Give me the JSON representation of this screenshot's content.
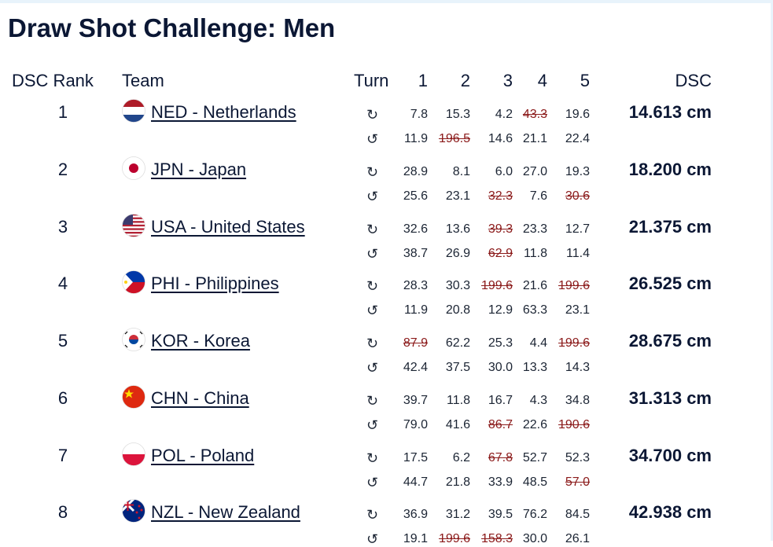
{
  "title": "Draw Shot Challenge: Men",
  "header": {
    "rank": "DSC Rank",
    "team": "Team",
    "turn": "Turn",
    "shots": [
      "1",
      "2",
      "3",
      "4",
      "5"
    ],
    "dsc": "DSC"
  },
  "rows": [
    {
      "rank": "1",
      "team": "NED - Netherlands",
      "dsc": "14.613 cm",
      "turns": [
        {
          "symbol": "↻",
          "shots": [
            {
              "value": "7.8"
            },
            {
              "value": "15.3"
            },
            {
              "value": "4.2"
            },
            {
              "value": "43.3",
              "struck": true
            },
            {
              "value": "19.6"
            }
          ]
        },
        {
          "symbol": "↺",
          "shots": [
            {
              "value": "11.9"
            },
            {
              "value": "196.5",
              "struck": true
            },
            {
              "value": "14.6"
            },
            {
              "value": "21.1"
            },
            {
              "value": "22.4"
            }
          ]
        }
      ]
    },
    {
      "rank": "2",
      "team": "JPN - Japan",
      "dsc": "18.200 cm",
      "turns": [
        {
          "symbol": "↻",
          "shots": [
            {
              "value": "28.9"
            },
            {
              "value": "8.1"
            },
            {
              "value": "6.0"
            },
            {
              "value": "27.0"
            },
            {
              "value": "19.3"
            }
          ]
        },
        {
          "symbol": "↺",
          "shots": [
            {
              "value": "25.6"
            },
            {
              "value": "23.1"
            },
            {
              "value": "32.3",
              "struck": true
            },
            {
              "value": "7.6"
            },
            {
              "value": "30.6",
              "struck": true
            }
          ]
        }
      ]
    },
    {
      "rank": "3",
      "team": "USA - United States",
      "dsc": "21.375 cm",
      "turns": [
        {
          "symbol": "↻",
          "shots": [
            {
              "value": "32.6"
            },
            {
              "value": "13.6"
            },
            {
              "value": "39.3",
              "struck": true
            },
            {
              "value": "23.3"
            },
            {
              "value": "12.7"
            }
          ]
        },
        {
          "symbol": "↺",
          "shots": [
            {
              "value": "38.7"
            },
            {
              "value": "26.9"
            },
            {
              "value": "62.9",
              "struck": true
            },
            {
              "value": "11.8"
            },
            {
              "value": "11.4"
            }
          ]
        }
      ]
    },
    {
      "rank": "4",
      "team": "PHI - Philippines",
      "dsc": "26.525 cm",
      "turns": [
        {
          "symbol": "↻",
          "shots": [
            {
              "value": "28.3"
            },
            {
              "value": "30.3"
            },
            {
              "value": "199.6",
              "struck": true
            },
            {
              "value": "21.6"
            },
            {
              "value": "199.6",
              "struck": true
            }
          ]
        },
        {
          "symbol": "↺",
          "shots": [
            {
              "value": "11.9"
            },
            {
              "value": "20.8"
            },
            {
              "value": "12.9"
            },
            {
              "value": "63.3"
            },
            {
              "value": "23.1"
            }
          ]
        }
      ]
    },
    {
      "rank": "5",
      "team": "KOR - Korea",
      "dsc": "28.675 cm",
      "turns": [
        {
          "symbol": "↻",
          "shots": [
            {
              "value": "87.9",
              "struck": true
            },
            {
              "value": "62.2"
            },
            {
              "value": "25.3"
            },
            {
              "value": "4.4"
            },
            {
              "value": "199.6",
              "struck": true
            }
          ]
        },
        {
          "symbol": "↺",
          "shots": [
            {
              "value": "42.4"
            },
            {
              "value": "37.5"
            },
            {
              "value": "30.0"
            },
            {
              "value": "13.3"
            },
            {
              "value": "14.3"
            }
          ]
        }
      ]
    },
    {
      "rank": "6",
      "team": "CHN - China",
      "dsc": "31.313 cm",
      "turns": [
        {
          "symbol": "↻",
          "shots": [
            {
              "value": "39.7"
            },
            {
              "value": "11.8"
            },
            {
              "value": "16.7"
            },
            {
              "value": "4.3"
            },
            {
              "value": "34.8"
            }
          ]
        },
        {
          "symbol": "↺",
          "shots": [
            {
              "value": "79.0"
            },
            {
              "value": "41.6"
            },
            {
              "value": "86.7",
              "struck": true
            },
            {
              "value": "22.6"
            },
            {
              "value": "190.6",
              "struck": true
            }
          ]
        }
      ]
    },
    {
      "rank": "7",
      "team": "POL - Poland",
      "dsc": "34.700 cm",
      "turns": [
        {
          "symbol": "↻",
          "shots": [
            {
              "value": "17.5"
            },
            {
              "value": "6.2"
            },
            {
              "value": "67.8",
              "struck": true
            },
            {
              "value": "52.7"
            },
            {
              "value": "52.3"
            }
          ]
        },
        {
          "symbol": "↺",
          "shots": [
            {
              "value": "44.7"
            },
            {
              "value": "21.8"
            },
            {
              "value": "33.9"
            },
            {
              "value": "48.5"
            },
            {
              "value": "57.0",
              "struck": true
            }
          ]
        }
      ]
    },
    {
      "rank": "8",
      "team": "NZL - New Zealand",
      "dsc": "42.938 cm",
      "turns": [
        {
          "symbol": "↻",
          "shots": [
            {
              "value": "36.9"
            },
            {
              "value": "31.2"
            },
            {
              "value": "39.5"
            },
            {
              "value": "76.2"
            },
            {
              "value": "84.5"
            }
          ]
        },
        {
          "symbol": "↺",
          "shots": [
            {
              "value": "19.1"
            },
            {
              "value": "199.6",
              "struck": true
            },
            {
              "value": "158.3",
              "struck": true
            },
            {
              "value": "30.0"
            },
            {
              "value": "26.1"
            }
          ]
        }
      ]
    }
  ]
}
